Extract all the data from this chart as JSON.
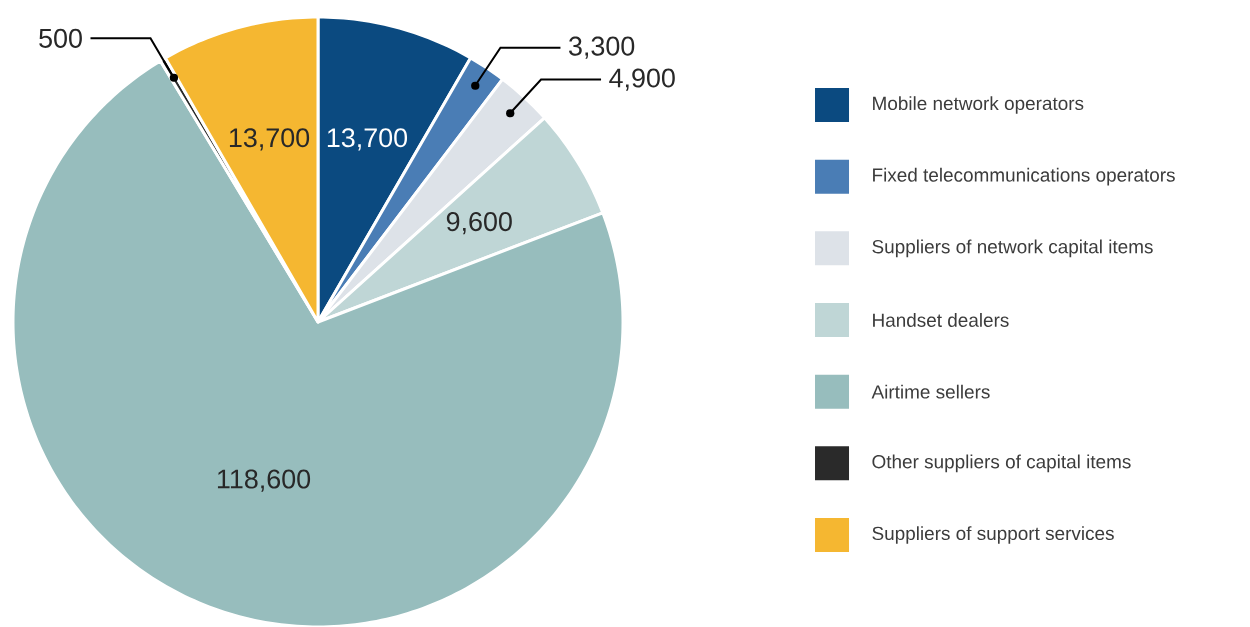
{
  "chart_data": {
    "type": "pie",
    "categories": [
      "Mobile network operators",
      "Fixed telecommunications operators",
      "Suppliers of network capital items",
      "Handset dealers",
      "Airtime sellers",
      "Other suppliers of capital items",
      "Suppliers of support services"
    ],
    "values": [
      13700,
      3300,
      4900,
      9600,
      118600,
      500,
      13700
    ],
    "colors": [
      "#0b4a80",
      "#4a7db5",
      "#dde2e8",
      "#bfd6d6",
      "#97bdbd",
      "#2a2a2a",
      "#f5b731"
    ],
    "value_labels": [
      "13,700",
      "3,300",
      "4,900",
      "9,600",
      "118,600",
      "500",
      "13,700"
    ],
    "legend": "right"
  }
}
